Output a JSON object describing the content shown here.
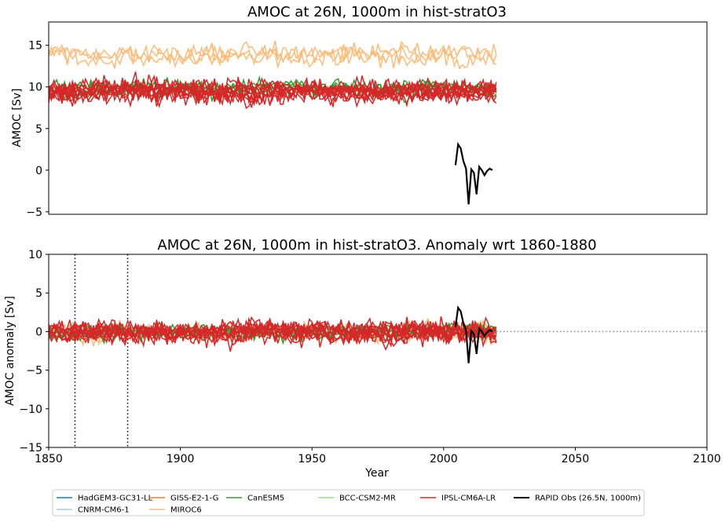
{
  "chart_data": [
    {
      "type": "line",
      "title": "AMOC at 26N, 1000m in hist-stratO3",
      "xlabel": "",
      "ylabel": "AMOC [Sv]",
      "xlim": [
        1850,
        2100
      ],
      "ylim": [
        -5.3,
        17.8
      ],
      "yticks": [
        -5,
        0,
        5,
        10,
        15
      ],
      "xticks_visible": false,
      "grid": false,
      "series": [
        {
          "model": "MIROC6",
          "color": "#ffbb78",
          "ensemble_members": 3,
          "x_range": [
            1850,
            2020
          ],
          "mean": 13.8,
          "spread": 1.2
        },
        {
          "model": "CanESM5",
          "color": "#2ca02c",
          "ensemble_members": 4,
          "x_range": [
            1850,
            2020
          ],
          "mean": 9.8,
          "spread": 0.9
        },
        {
          "model": "IPSL-CM6A-LR",
          "color": "#d62728",
          "ensemble_members": 10,
          "x_range": [
            1850,
            2020
          ],
          "mean": 9.5,
          "spread": 1.3
        },
        {
          "model": "RAPID Obs (26.5N, 1000m)",
          "color": "#000000",
          "x": [
            2004.5,
            2005.5,
            2006.5,
            2007.5,
            2008.5,
            2009.5,
            2010.5,
            2011.5,
            2012.5,
            2013.5,
            2014.5,
            2015.5,
            2016.5,
            2017.5,
            2018.5
          ],
          "y": [
            0.6,
            3.1,
            2.6,
            1.1,
            0.2,
            -4.1,
            0.1,
            -0.3,
            -2.9,
            0.4,
            0.0,
            -0.6,
            -0.1,
            0.2,
            0.0
          ]
        }
      ]
    },
    {
      "type": "line",
      "title": "AMOC at 26N, 1000m in hist-stratO3. Anomaly wrt 1860-1880",
      "xlabel": "Year",
      "ylabel": "AMOC anomaly [Sv]",
      "xlim": [
        1850,
        2100
      ],
      "ylim": [
        -15,
        10
      ],
      "xticks": [
        1850,
        1900,
        1950,
        2000,
        2050,
        2100
      ],
      "yticks": [
        -15,
        -10,
        -5,
        0,
        5,
        10
      ],
      "reference_lines": {
        "vertical_dotted": [
          1860,
          1880
        ],
        "horizontal_dotted": 0
      },
      "grid": false,
      "series": [
        {
          "model": "MIROC6",
          "color": "#ffbb78",
          "ensemble_members": 3,
          "x_range": [
            1850,
            2020
          ],
          "mean": 0.0,
          "spread": 1.2
        },
        {
          "model": "CanESM5",
          "color": "#2ca02c",
          "ensemble_members": 4,
          "x_range": [
            1850,
            2020
          ],
          "mean": 0.0,
          "spread": 0.9
        },
        {
          "model": "IPSL-CM6A-LR",
          "color": "#d62728",
          "ensemble_members": 10,
          "x_range": [
            1850,
            2020
          ],
          "mean": 0.0,
          "spread": 1.3
        },
        {
          "model": "RAPID Obs (26.5N, 1000m)",
          "color": "#000000",
          "x": [
            2004.5,
            2005.5,
            2006.5,
            2007.5,
            2008.5,
            2009.5,
            2010.5,
            2011.5,
            2012.5,
            2013.5,
            2014.5,
            2015.5,
            2016.5,
            2017.5,
            2018.5
          ],
          "y": [
            0.6,
            3.1,
            2.6,
            1.1,
            0.2,
            -4.1,
            0.1,
            -0.3,
            -2.9,
            0.4,
            0.0,
            -0.6,
            -0.1,
            0.2,
            0.0
          ]
        }
      ]
    }
  ],
  "legend": {
    "placement": "bottom",
    "entries": [
      {
        "label": "HadGEM3-GC31-LL",
        "color": "#1f77b4"
      },
      {
        "label": "CNRM-CM6-1",
        "color": "#aec7e8"
      },
      {
        "label": "GISS-E2-1-G",
        "color": "#ff7f0e"
      },
      {
        "label": "MIROC6",
        "color": "#ffbb78"
      },
      {
        "label": "CanESM5",
        "color": "#2ca02c"
      },
      {
        "label": "BCC-CSM2-MR",
        "color": "#98df8a"
      },
      {
        "label": "IPSL-CM6A-LR",
        "color": "#d62728"
      },
      {
        "label": "RAPID Obs (26.5N, 1000m)",
        "color": "#000000"
      }
    ]
  }
}
